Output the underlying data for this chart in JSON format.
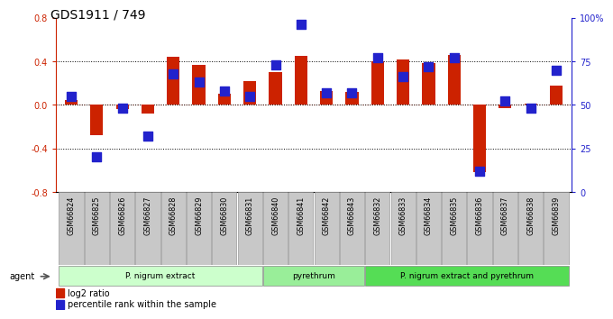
{
  "title": "GDS1911 / 749",
  "samples": [
    "GSM66824",
    "GSM66825",
    "GSM66826",
    "GSM66827",
    "GSM66828",
    "GSM66829",
    "GSM66830",
    "GSM66831",
    "GSM66840",
    "GSM66841",
    "GSM66842",
    "GSM66843",
    "GSM66832",
    "GSM66833",
    "GSM66834",
    "GSM66835",
    "GSM66836",
    "GSM66837",
    "GSM66838",
    "GSM66839"
  ],
  "log2_ratio": [
    0.04,
    -0.28,
    -0.04,
    -0.08,
    0.44,
    0.37,
    0.1,
    0.22,
    0.3,
    0.45,
    0.13,
    0.12,
    0.4,
    0.42,
    0.38,
    0.46,
    -0.62,
    -0.03,
    0.01,
    0.18
  ],
  "pct_rank": [
    55,
    20,
    48,
    32,
    68,
    63,
    58,
    55,
    73,
    96,
    57,
    57,
    77,
    66,
    72,
    77,
    12,
    52,
    48,
    70
  ],
  "groups": [
    {
      "label": "P. nigrum extract",
      "start": 0,
      "end": 8,
      "color": "#ccffcc"
    },
    {
      "label": "pyrethrum",
      "start": 8,
      "end": 12,
      "color": "#99ee99"
    },
    {
      "label": "P. nigrum extract and pyrethrum",
      "start": 12,
      "end": 20,
      "color": "#55dd55"
    }
  ],
  "bar_color": "#cc2200",
  "dot_color": "#2222cc",
  "ylim_left": [
    -0.8,
    0.8
  ],
  "ylim_right": [
    0,
    100
  ],
  "yticks_left": [
    -0.8,
    -0.4,
    0.0,
    0.4,
    0.8
  ],
  "yticks_right": [
    0,
    25,
    50,
    75,
    100
  ],
  "ytick_labels_right": [
    "0",
    "25",
    "50",
    "75",
    "100%"
  ],
  "hlines_dotted": [
    -0.4,
    0.4
  ],
  "bar_width": 0.5,
  "dot_size": 45,
  "title_fontsize": 10,
  "tick_label_color_left": "#cc2200",
  "tick_label_color_right": "#2222cc",
  "agent_label": "agent",
  "legend_items": [
    "log2 ratio",
    "percentile rank within the sample"
  ]
}
